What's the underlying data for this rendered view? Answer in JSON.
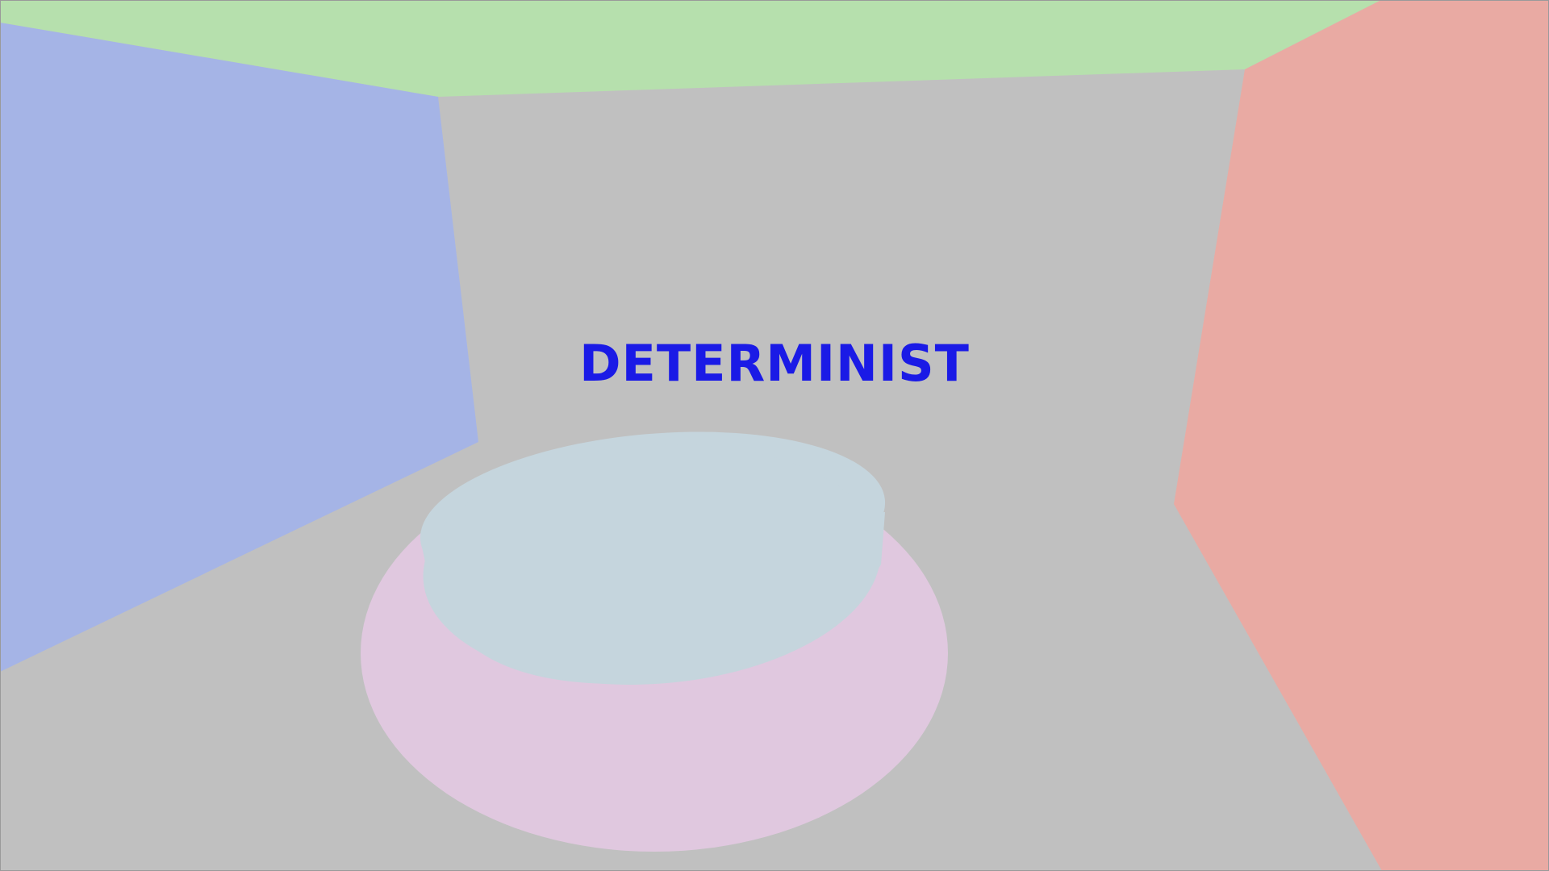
{
  "hud": {
    "title": "DETERMINIST"
  },
  "colors": {
    "floor": "#c0c0c0",
    "back_wall": "#c0c0c0",
    "ceiling": "#b6e0ad",
    "left_wall": "#a5b4e6",
    "right_wall": "#e9aaa3",
    "disc_top": "#c5d5dd",
    "disc_base": "#e0c8df",
    "title_text": "#1a1ae6"
  }
}
